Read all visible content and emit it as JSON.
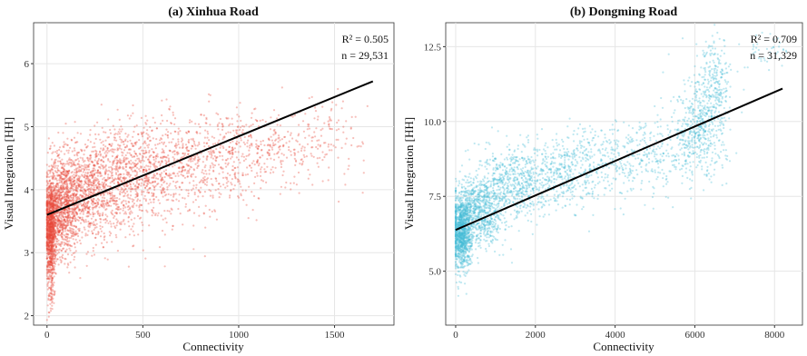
{
  "chart_data": [
    {
      "type": "scatter",
      "title": "(a) Xinhua Road",
      "xlabel": "Connectivity",
      "ylabel": "Visual Integration [HH]",
      "xlim": [
        -70,
        1810
      ],
      "ylim": [
        1.85,
        6.65
      ],
      "xticks": [
        0,
        500,
        1000,
        1500
      ],
      "yticks": [
        2,
        3,
        4,
        5,
        6
      ],
      "xtick_labels": [
        "0",
        "500",
        "1000",
        "1500"
      ],
      "ytick_labels": [
        "2",
        "3",
        "4",
        "5",
        "6"
      ],
      "grid": true,
      "point_color": "#e8483a",
      "n": 29531,
      "annotations": [
        "R² = 0.505",
        "n = 29,531"
      ],
      "regression_line": {
        "x": [
          0,
          1700
        ],
        "y": [
          3.6,
          5.72
        ]
      },
      "clusters": [
        {
          "cx": 20,
          "cy": 3.4,
          "sx": 15,
          "sy": 0.35,
          "count": 900
        },
        {
          "cx": 80,
          "cy": 3.75,
          "sx": 45,
          "sy": 0.4,
          "count": 900
        },
        {
          "cx": 200,
          "cy": 3.95,
          "sx": 90,
          "sy": 0.4,
          "count": 800
        },
        {
          "cx": 400,
          "cy": 4.15,
          "sx": 130,
          "sy": 0.4,
          "count": 700
        },
        {
          "cx": 650,
          "cy": 4.35,
          "sx": 170,
          "sy": 0.4,
          "count": 550
        },
        {
          "cx": 950,
          "cy": 4.55,
          "sx": 170,
          "sy": 0.35,
          "count": 350
        },
        {
          "cx": 1250,
          "cy": 4.7,
          "sx": 170,
          "sy": 0.3,
          "count": 200
        },
        {
          "cx": 1500,
          "cy": 4.95,
          "sx": 80,
          "sy": 0.25,
          "count": 60
        },
        {
          "cx": 20,
          "cy": 2.6,
          "sx": 10,
          "sy": 0.3,
          "count": 150
        }
      ]
    },
    {
      "type": "scatter",
      "title": "(b) Dongming Road",
      "xlabel": "Connectivity",
      "ylabel": "Visual Integration [HH]",
      "xlim": [
        -250,
        8700
      ],
      "ylim": [
        3.2,
        13.3
      ],
      "xticks": [
        0,
        2000,
        4000,
        6000,
        8000
      ],
      "yticks": [
        5.0,
        7.5,
        10.0,
        12.5
      ],
      "xtick_labels": [
        "0",
        "2000",
        "4000",
        "6000",
        "8000"
      ],
      "ytick_labels": [
        "5.0",
        "7.5",
        "10.0",
        "12.5"
      ],
      "grid": true,
      "point_color": "#47bcd6",
      "n": 31329,
      "annotations": [
        "R² = 0.709",
        "n = 31,329"
      ],
      "regression_line": {
        "x": [
          0,
          8200
        ],
        "y": [
          6.38,
          11.1
        ]
      },
      "clusters": [
        {
          "cx": 150,
          "cy": 6.3,
          "sx": 120,
          "sy": 0.6,
          "count": 1100
        },
        {
          "cx": 600,
          "cy": 7.0,
          "sx": 300,
          "sy": 0.6,
          "count": 800
        },
        {
          "cx": 1400,
          "cy": 7.9,
          "sx": 400,
          "sy": 0.6,
          "count": 500
        },
        {
          "cx": 2400,
          "cy": 8.2,
          "sx": 500,
          "sy": 0.6,
          "count": 350
        },
        {
          "cx": 3500,
          "cy": 8.6,
          "sx": 600,
          "sy": 0.6,
          "count": 300
        },
        {
          "cx": 4900,
          "cy": 8.9,
          "sx": 700,
          "sy": 0.6,
          "count": 300
        },
        {
          "cx": 6100,
          "cy": 9.7,
          "sx": 350,
          "sy": 0.8,
          "count": 450
        },
        {
          "cx": 6500,
          "cy": 11.2,
          "sx": 200,
          "sy": 0.8,
          "count": 250
        },
        {
          "cx": 7800,
          "cy": 12.4,
          "sx": 400,
          "sy": 0.3,
          "count": 40
        }
      ]
    }
  ]
}
